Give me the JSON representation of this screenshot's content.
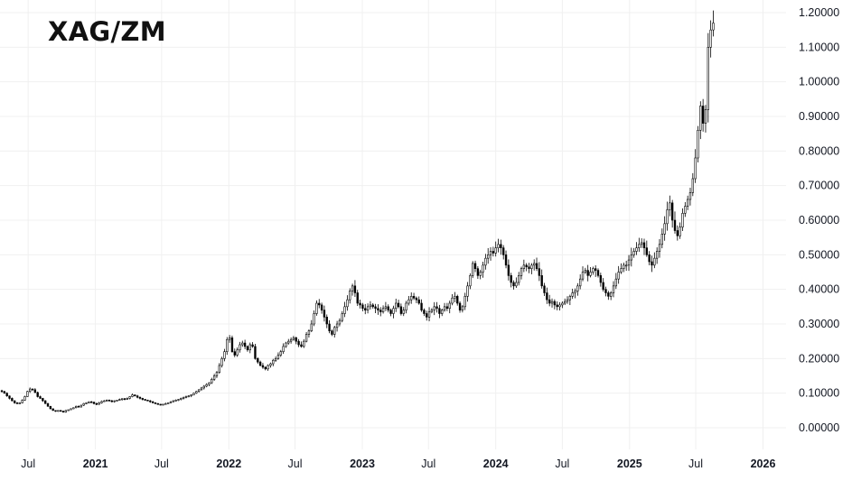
{
  "chart_data": {
    "type": "candlestick",
    "title": "XAG/ZM",
    "xlabel": "",
    "ylabel": "",
    "ylim": [
      -0.05,
      1.22
    ],
    "grid": true,
    "y_ticks": [
      "1.20000",
      "1.10000",
      "1.00000",
      "0.90000",
      "0.80000",
      "0.70000",
      "0.60000",
      "0.50000",
      "0.40000",
      "0.30000",
      "0.20000",
      "0.10000",
      "0.00000"
    ],
    "y_tick_values": [
      1.2,
      1.1,
      1.0,
      0.9,
      0.8,
      0.7,
      0.6,
      0.5,
      0.4,
      0.3,
      0.2,
      0.1,
      0.0
    ],
    "x_ticks": [
      "Jul",
      "2021",
      "Jul",
      "2022",
      "Jul",
      "2023",
      "Jul",
      "2024",
      "Jul",
      "2025",
      "Jul",
      "2026"
    ],
    "x_tick_dates": [
      "2020-07-01",
      "2021-01-01",
      "2021-07-01",
      "2022-01-01",
      "2022-07-01",
      "2023-01-01",
      "2023-07-01",
      "2024-01-01",
      "2024-07-01",
      "2025-01-01",
      "2025-07-01",
      "2026-01-01"
    ],
    "x_range": [
      "2020-04-15",
      "2026-03-05"
    ],
    "colors": {
      "up": "#ffffff",
      "down": "#000000",
      "wick": "#000000",
      "grid": "#f0f0f0",
      "axis_text": "#131722"
    },
    "series": [
      {
        "period": "weekly",
        "start_date": "2020-04-20",
        "closes": [
          0.105,
          0.1,
          0.092,
          0.085,
          0.078,
          0.072,
          0.07,
          0.072,
          0.08,
          0.09,
          0.105,
          0.112,
          0.11,
          0.102,
          0.09,
          0.085,
          0.078,
          0.07,
          0.062,
          0.055,
          0.05,
          0.048,
          0.05,
          0.048,
          0.045,
          0.05,
          0.052,
          0.055,
          0.058,
          0.062,
          0.06,
          0.065,
          0.07,
          0.072,
          0.075,
          0.074,
          0.07,
          0.068,
          0.072,
          0.076,
          0.078,
          0.08,
          0.078,
          0.076,
          0.078,
          0.08,
          0.082,
          0.084,
          0.083,
          0.085,
          0.09,
          0.095,
          0.092,
          0.088,
          0.085,
          0.082,
          0.08,
          0.078,
          0.075,
          0.072,
          0.07,
          0.068,
          0.066,
          0.068,
          0.07,
          0.072,
          0.075,
          0.078,
          0.08,
          0.082,
          0.085,
          0.088,
          0.09,
          0.092,
          0.095,
          0.1,
          0.105,
          0.11,
          0.115,
          0.12,
          0.125,
          0.13,
          0.14,
          0.15,
          0.16,
          0.18,
          0.2,
          0.22,
          0.255,
          0.26,
          0.22,
          0.21,
          0.225,
          0.24,
          0.245,
          0.235,
          0.225,
          0.24,
          0.235,
          0.2,
          0.19,
          0.18,
          0.175,
          0.17,
          0.18,
          0.185,
          0.195,
          0.2,
          0.21,
          0.22,
          0.235,
          0.245,
          0.25,
          0.255,
          0.26,
          0.25,
          0.24,
          0.235,
          0.25,
          0.27,
          0.28,
          0.3,
          0.33,
          0.36,
          0.355,
          0.34,
          0.32,
          0.3,
          0.28,
          0.27,
          0.29,
          0.3,
          0.31,
          0.33,
          0.35,
          0.37,
          0.395,
          0.41,
          0.39,
          0.36,
          0.355,
          0.345,
          0.34,
          0.35,
          0.355,
          0.35,
          0.345,
          0.34,
          0.335,
          0.345,
          0.35,
          0.34,
          0.33,
          0.345,
          0.36,
          0.35,
          0.33,
          0.34,
          0.36,
          0.37,
          0.38,
          0.375,
          0.37,
          0.36,
          0.34,
          0.33,
          0.32,
          0.335,
          0.34,
          0.35,
          0.345,
          0.33,
          0.34,
          0.35,
          0.345,
          0.36,
          0.375,
          0.38,
          0.36,
          0.34,
          0.35,
          0.38,
          0.41,
          0.44,
          0.475,
          0.46,
          0.44,
          0.45,
          0.47,
          0.49,
          0.5,
          0.51,
          0.505,
          0.52,
          0.53,
          0.52,
          0.5,
          0.47,
          0.44,
          0.42,
          0.41,
          0.42,
          0.44,
          0.46,
          0.47,
          0.465,
          0.46,
          0.47,
          0.475,
          0.46,
          0.44,
          0.41,
          0.39,
          0.37,
          0.36,
          0.365,
          0.355,
          0.35,
          0.355,
          0.36,
          0.365,
          0.37,
          0.38,
          0.39,
          0.395,
          0.41,
          0.43,
          0.45,
          0.455,
          0.44,
          0.45,
          0.46,
          0.455,
          0.44,
          0.42,
          0.4,
          0.39,
          0.38,
          0.39,
          0.41,
          0.43,
          0.45,
          0.46,
          0.47,
          0.47,
          0.485,
          0.5,
          0.51,
          0.52,
          0.53,
          0.535,
          0.52,
          0.5,
          0.48,
          0.47,
          0.49,
          0.51,
          0.53,
          0.56,
          0.59,
          0.63,
          0.65,
          0.6,
          0.57,
          0.555,
          0.58,
          0.62,
          0.64,
          0.66,
          0.68,
          0.72,
          0.78,
          0.86,
          0.93,
          0.88,
          0.92,
          1.1,
          1.15,
          1.17
        ]
      }
    ]
  }
}
